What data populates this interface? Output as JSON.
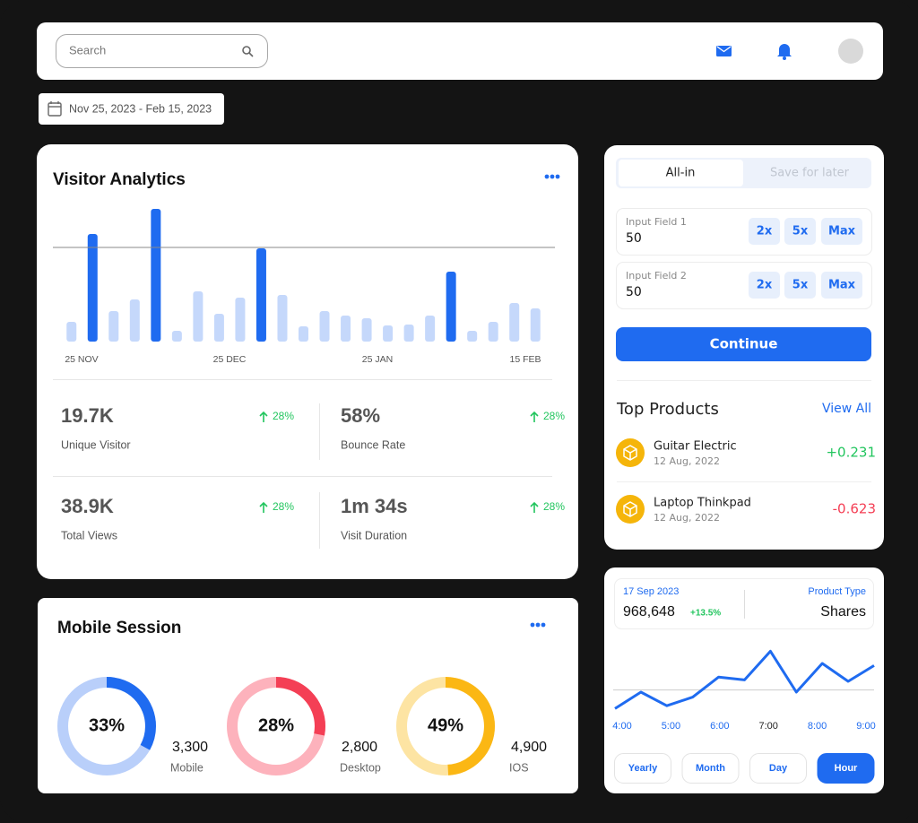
{
  "header": {
    "search_placeholder": "Search"
  },
  "date_range": "Nov 25, 2023 - Feb 15, 2023",
  "visitor_analytics": {
    "title": "Visitor Analytics",
    "chart_data": {
      "type": "bar",
      "values": [
        22,
        120,
        34,
        47,
        148,
        12,
        56,
        31,
        49,
        104,
        52,
        17,
        34,
        29,
        26,
        18,
        19,
        29,
        78,
        12,
        22,
        43,
        37
      ],
      "colors": [
        "#c5d8fb",
        "#1f6bf0",
        "#c5d8fb",
        "#c5d8fb",
        "#1f6bf0",
        "#c5d8fb",
        "#c5d8fb",
        "#c5d8fb",
        "#c5d8fb",
        "#1f6bf0",
        "#c5d8fb",
        "#c5d8fb",
        "#c5d8fb",
        "#c5d8fb",
        "#c5d8fb",
        "#c5d8fb",
        "#c5d8fb",
        "#c5d8fb",
        "#1f6bf0",
        "#c5d8fb",
        "#c5d8fb",
        "#c5d8fb",
        "#c5d8fb"
      ],
      "ylim": [
        0,
        150
      ],
      "reference_line": 105,
      "x_labels": [
        "25 NOV",
        "25 DEC",
        "25 JAN",
        "15 FEB"
      ]
    },
    "stats": [
      {
        "value": "19.7K",
        "label": "Unique Visitor",
        "change": "28%"
      },
      {
        "value": "58%",
        "label": "Bounce Rate",
        "change": "28%"
      },
      {
        "value": "38.9K",
        "label": "Total Views",
        "change": "28%"
      },
      {
        "value": "1m 34s",
        "label": "Visit Duration",
        "change": "28%"
      }
    ]
  },
  "mobile_session": {
    "title": "Mobile Session",
    "items": [
      {
        "percent": 33,
        "percent_label": "33%",
        "value": "3,300",
        "label": "Mobile",
        "color": "#1f6bf0",
        "track_color": "#b9cffa"
      },
      {
        "percent": 28,
        "percent_label": "28%",
        "value": "2,800",
        "label": "Desktop",
        "color": "#f43f55",
        "track_color": "#fdb2bc"
      },
      {
        "percent": 49,
        "percent_label": "49%",
        "value": "4,900",
        "label": "IOS",
        "color": "#fbb714",
        "track_color": "#fde4a3"
      }
    ]
  },
  "trade_panel": {
    "tabs": [
      "All-in",
      "Save for later"
    ],
    "inputs": [
      {
        "label": "Input Field 1",
        "value": "50",
        "buttons": [
          "2x",
          "5x",
          "Max"
        ]
      },
      {
        "label": "Input Field 2",
        "value": "50",
        "buttons": [
          "2x",
          "5x",
          "Max"
        ]
      }
    ],
    "submit": "Continue"
  },
  "top_products": {
    "title": "Top Products",
    "view_all": "View All",
    "items": [
      {
        "name": "Guitar Electric",
        "date": "12 Aug, 2022",
        "change": "+0.231"
      },
      {
        "name": "Laptop Thinkpad",
        "date": "12 Aug, 2022",
        "change": "-0.623"
      }
    ]
  },
  "shares": {
    "date": "17 Sep 2023",
    "value": "968,648",
    "change": "+13.5%",
    "type_label": "Product Type",
    "type_value": "Shares",
    "chart_data": {
      "type": "line",
      "values": [
        12,
        35,
        16,
        28,
        56,
        52,
        92,
        35,
        75,
        50,
        72
      ],
      "ylim": [
        0,
        100
      ],
      "reference_line": 38,
      "color": "#1f6bf0",
      "x_labels": [
        "4:00",
        "5:00",
        "6:00",
        "7:00",
        "8:00",
        "9:00"
      ]
    },
    "ranges": [
      "Yearly",
      "Month",
      "Day",
      "Hour"
    ]
  }
}
